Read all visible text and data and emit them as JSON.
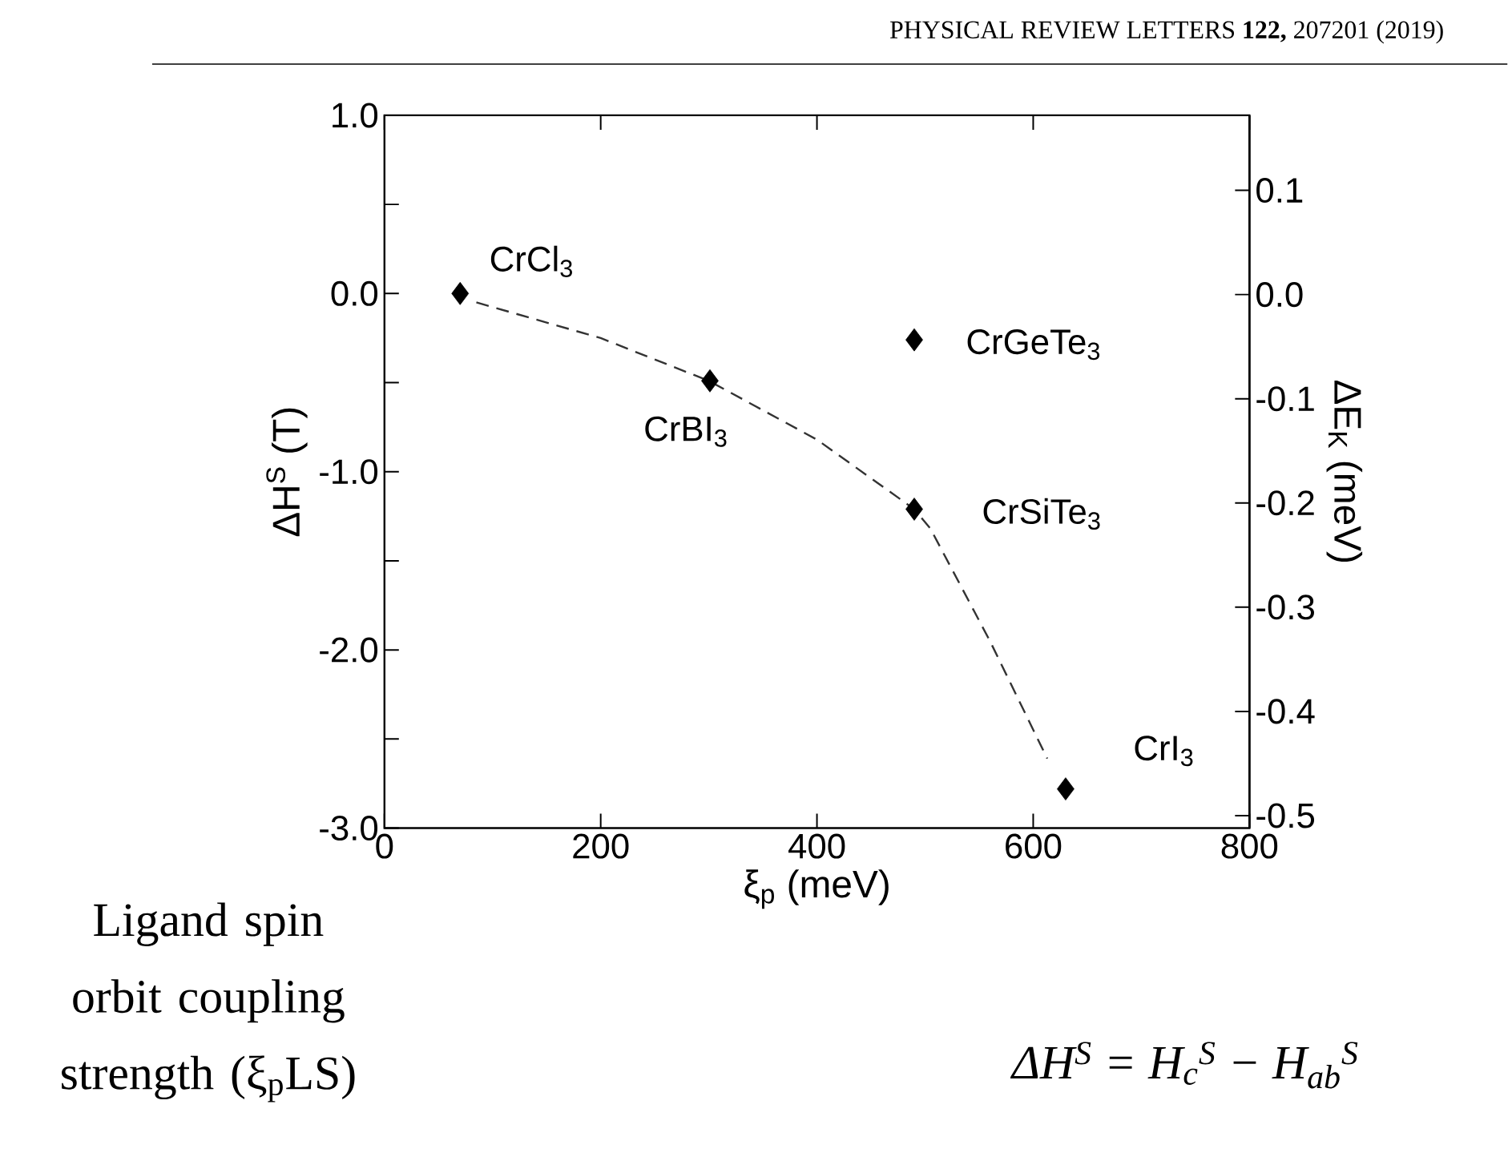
{
  "chart_data": {
    "type": "scatter",
    "xlabel": "ξ$_{p}$ (meV)",
    "ylabel": "ΔH$^{S}$ (T)",
    "y2label": "ΔE$_{K}$ (meV)",
    "xlim": [
      0,
      800
    ],
    "xticks": [
      0,
      200,
      400,
      600,
      800
    ],
    "ylim": [
      -3,
      1
    ],
    "yticks": [
      {
        "value": -3,
        "label": "-3.0"
      },
      {
        "value": -2.5,
        "label": null
      },
      {
        "value": -2,
        "label": "-2.0"
      },
      {
        "value": -1.5,
        "label": null
      },
      {
        "value": -1,
        "label": "-1.0"
      },
      {
        "value": -0.5,
        "label": null
      },
      {
        "value": 0,
        "label": "0.0"
      },
      {
        "value": 0.5,
        "label": null
      },
      {
        "value": 1,
        "label": "1.0"
      }
    ],
    "y2lim": [
      -0.512,
      0.172
    ],
    "y2ticks": [
      {
        "value": -0.5,
        "label": "-0.5"
      },
      {
        "value": -0.4,
        "label": "-0.4"
      },
      {
        "value": -0.3,
        "label": "-0.3"
      },
      {
        "value": -0.2,
        "label": "-0.2"
      },
      {
        "value": -0.1,
        "label": "-0.1"
      },
      {
        "value": 0,
        "label": "0.0"
      },
      {
        "value": 0.1,
        "label": "0.1"
      }
    ],
    "series": [
      {
        "type": "line",
        "color": "#333333",
        "line_style": "dashed",
        "marker": "none",
        "x": [
          85,
          200,
          300,
          400,
          490,
          505,
          560,
          613
        ],
        "values": [
          -0.05,
          -0.25,
          -0.49,
          -0.82,
          -1.21,
          -1.32,
          -1.95,
          -2.61
        ]
      },
      {
        "type": "scatter",
        "color": "#000000",
        "marker": "diamond",
        "x": [
          70,
          301,
          490,
          490,
          630
        ],
        "values": [
          0.0,
          -0.49,
          -0.26,
          -1.21,
          -2.78
        ]
      }
    ],
    "annotations": [
      "PHYSICAL REVIEW LETTERS **122,** 207201 (2019)",
      {
        "text": "CrCl$_{3}$",
        "x": 70,
        "y": 0.0
      },
      {
        "text": "CrBI$_{3}$",
        "x": 301,
        "y": -0.49
      },
      {
        "text": "CrGeTe$_{3}$",
        "x": 490,
        "y": -0.26
      },
      {
        "text": "CrSiTe$_{3}$",
        "x": 490,
        "y": -1.21
      },
      {
        "text": "CrI$_{3}$",
        "x": 630,
        "y": -2.78
      },
      "Ligand spin orbit coupling strength (ξ$_{p}$LS)",
      "ΔH$^{S}$ = H$_{c}$$^{S}$ − H$_{ab}$$^{S}$"
    ]
  }
}
